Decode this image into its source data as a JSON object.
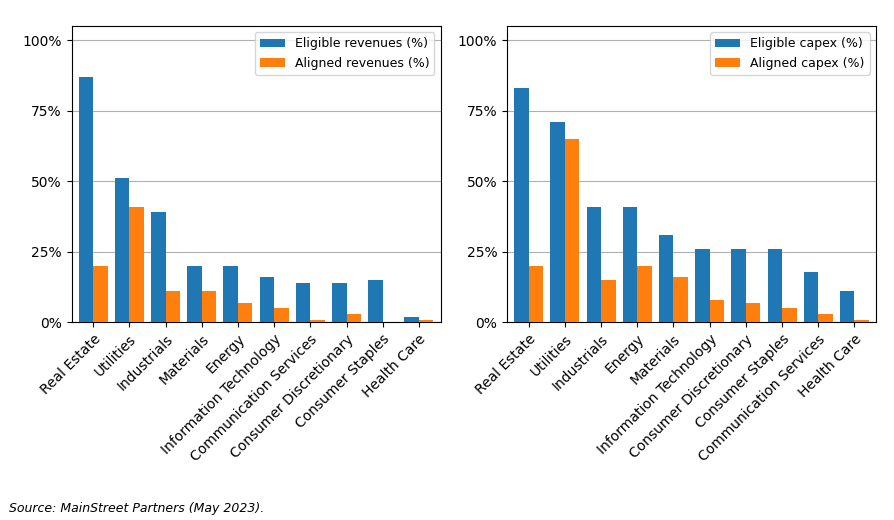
{
  "chart_data": [
    {
      "type": "bar",
      "categories": [
        "Real Estate",
        "Utilities",
        "Industrials",
        "Materials",
        "Energy",
        "Information Technology",
        "Communication Services",
        "Consumer Discretionary",
        "Consumer Staples",
        "Health Care"
      ],
      "series": [
        {
          "name": "Eligible revenues (%)",
          "values": [
            87,
            51,
            39,
            20,
            20,
            16,
            14,
            14,
            15,
            2
          ]
        },
        {
          "name": "Aligned revenues (%)",
          "values": [
            20,
            41,
            11,
            11,
            7,
            5,
            1,
            3,
            0,
            1
          ]
        }
      ],
      "ylim": [
        0,
        105
      ],
      "yticks": [
        {
          "value": 0,
          "label": "0%"
        },
        {
          "value": 25,
          "label": "25%"
        },
        {
          "value": 50,
          "label": "50%"
        },
        {
          "value": 75,
          "label": "75%"
        },
        {
          "value": 100,
          "label": "100%"
        }
      ],
      "grid": true,
      "legend": "upper right"
    },
    {
      "type": "bar",
      "categories": [
        "Real Estate",
        "Utilities",
        "Industrials",
        "Energy",
        "Materials",
        "Information Technology",
        "Consumer Discretionary",
        "Consumer Staples",
        "Communication Services",
        "Health Care"
      ],
      "series": [
        {
          "name": "Eligible capex (%)",
          "values": [
            83,
            71,
            41,
            41,
            31,
            26,
            26,
            26,
            18,
            11
          ]
        },
        {
          "name": "Aligned capex (%)",
          "values": [
            20,
            65,
            15,
            20,
            16,
            8,
            7,
            5,
            3,
            1
          ]
        }
      ],
      "ylim": [
        0,
        105
      ],
      "yticks": [
        {
          "value": 0,
          "label": "0%"
        },
        {
          "value": 25,
          "label": "25%"
        },
        {
          "value": 50,
          "label": "50%"
        },
        {
          "value": 75,
          "label": "75%"
        },
        {
          "value": 100,
          "label": "100%"
        }
      ],
      "grid": true,
      "legend": "upper right"
    }
  ],
  "source": "Source: MainStreet Partners (May 2023)."
}
